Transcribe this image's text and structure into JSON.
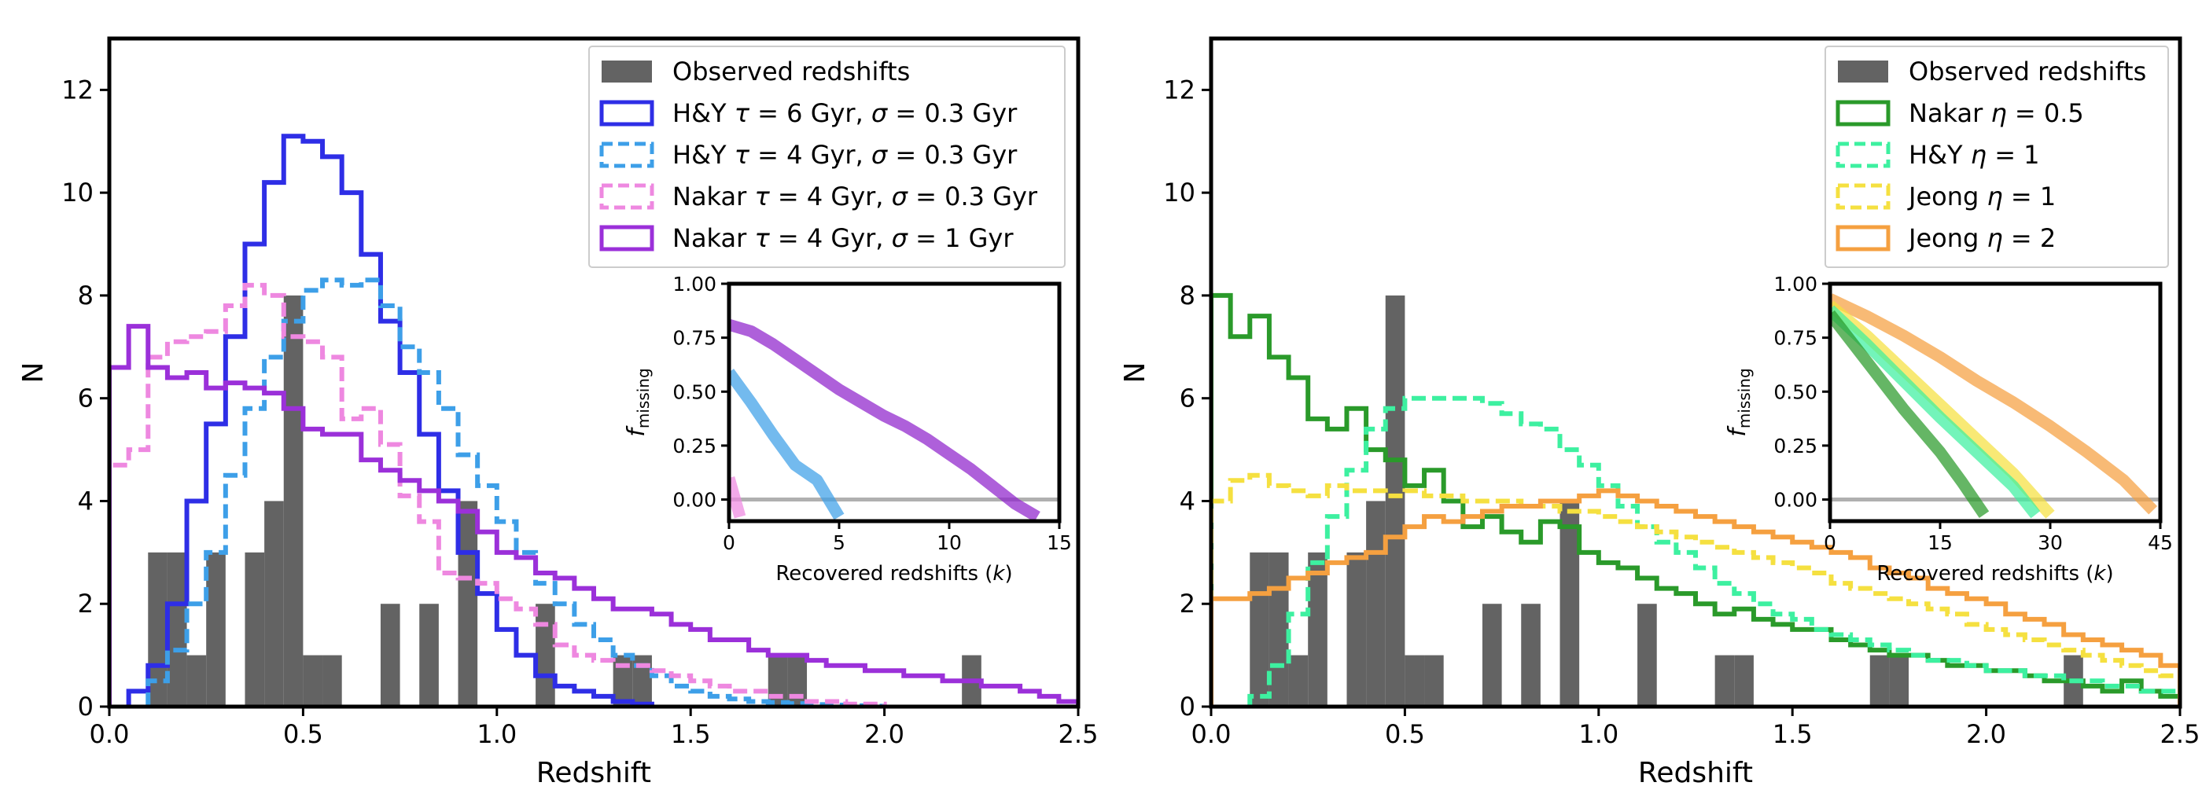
{
  "chart_data": [
    {
      "type": "histogram",
      "xlabel": "Redshift",
      "ylabel": "N",
      "xlim": [
        0,
        2.5
      ],
      "ylim": [
        0,
        13
      ],
      "xticks": [
        0.0,
        0.5,
        1.0,
        1.5,
        2.0,
        2.5
      ],
      "xtick_labels": [
        "0.0",
        "0.5",
        "1.0",
        "1.5",
        "2.0",
        "2.5"
      ],
      "yticks": [
        0,
        2,
        4,
        6,
        8,
        10,
        12
      ],
      "ytick_labels": [
        "0",
        "2",
        "4",
        "6",
        "8",
        "10",
        "12"
      ],
      "legend_position": "top-right",
      "observed": {
        "label": "Observed redshifts",
        "color": "#636363",
        "bin_width": 0.05,
        "bins": [
          {
            "x": 0.1,
            "n": 3
          },
          {
            "x": 0.15,
            "n": 3
          },
          {
            "x": 0.2,
            "n": 1
          },
          {
            "x": 0.25,
            "n": 3
          },
          {
            "x": 0.35,
            "n": 3
          },
          {
            "x": 0.4,
            "n": 4
          },
          {
            "x": 0.45,
            "n": 8
          },
          {
            "x": 0.5,
            "n": 1
          },
          {
            "x": 0.55,
            "n": 1
          },
          {
            "x": 0.7,
            "n": 2
          },
          {
            "x": 0.8,
            "n": 2
          },
          {
            "x": 0.9,
            "n": 4
          },
          {
            "x": 1.1,
            "n": 2
          },
          {
            "x": 1.3,
            "n": 1
          },
          {
            "x": 1.35,
            "n": 1
          },
          {
            "x": 1.7,
            "n": 1
          },
          {
            "x": 1.75,
            "n": 1
          },
          {
            "x": 2.2,
            "n": 1
          }
        ]
      },
      "series": [
        {
          "name": "H&Y τ = 6 Gyr, σ = 0.3 Gyr",
          "legend_parts": [
            "H&Y ",
            "τ",
            " = 6 Gyr, ",
            "σ",
            " = 0.3 Gyr"
          ],
          "color": "#2e2ee6",
          "dash": false,
          "x_start": 0.05,
          "bin_width": 0.05,
          "values": [
            0.3,
            0.8,
            2.0,
            4.0,
            5.5,
            7.2,
            9.0,
            10.2,
            11.1,
            11.0,
            10.7,
            10.0,
            8.8,
            7.5,
            6.5,
            5.3,
            4.2,
            3.0,
            2.2,
            1.5,
            1.0,
            0.6,
            0.4,
            0.3,
            0.2,
            0.1,
            0.05
          ]
        },
        {
          "name": "H&Y τ = 4 Gyr, σ = 0.3 Gyr",
          "legend_parts": [
            "H&Y ",
            "τ",
            " = 4 Gyr, ",
            "σ",
            " = 0.3 Gyr"
          ],
          "color": "#3d9fe8",
          "dash": true,
          "x_start": 0.1,
          "bin_width": 0.05,
          "values": [
            0.5,
            1.1,
            2.0,
            3.0,
            4.5,
            5.8,
            6.8,
            7.5,
            8.1,
            8.3,
            8.2,
            8.3,
            7.8,
            7.0,
            6.5,
            5.8,
            4.9,
            4.3,
            3.6,
            3.0,
            2.4,
            2.0,
            1.6,
            1.3,
            1.0,
            0.8,
            0.6,
            0.4,
            0.3,
            0.2,
            0.15,
            0.1,
            0.08,
            0.06,
            0.04,
            0.03,
            0.02,
            0.01
          ]
        },
        {
          "name": "Nakar τ = 4 Gyr, σ = 0.3 Gyr",
          "legend_parts": [
            "Nakar ",
            "τ",
            " = 4 Gyr, ",
            "σ",
            " = 0.3 Gyr"
          ],
          "color": "#ee88e0",
          "dash": true,
          "x_start": 0.0,
          "bin_width": 0.05,
          "values": [
            4.7,
            5.0,
            6.8,
            7.1,
            7.2,
            7.3,
            7.8,
            8.2,
            8.0,
            7.2,
            7.1,
            6.8,
            5.6,
            5.8,
            5.1,
            4.1,
            3.6,
            2.6,
            2.5,
            2.4,
            2.1,
            1.9,
            1.6,
            1.2,
            1.0,
            0.9,
            0.8,
            0.8,
            0.7,
            0.6,
            0.5,
            0.4,
            0.3,
            0.3,
            0.2,
            0.2,
            0.1,
            0.1,
            0.05,
            0.05
          ]
        },
        {
          "name": "Nakar τ = 4 Gyr, σ = 1 Gyr",
          "legend_parts": [
            "Nakar ",
            "τ",
            " = 4 Gyr, ",
            "σ",
            " = 1 Gyr"
          ],
          "color": "#9b30d9",
          "dash": false,
          "x_start": 0.0,
          "bin_width": 0.05,
          "values": [
            6.6,
            7.4,
            6.6,
            6.4,
            6.5,
            6.2,
            6.3,
            6.2,
            6.1,
            5.8,
            5.4,
            5.3,
            5.3,
            4.8,
            4.6,
            4.4,
            4.2,
            4.0,
            3.8,
            3.4,
            3.0,
            2.9,
            2.6,
            2.5,
            2.3,
            2.1,
            1.9,
            1.9,
            1.8,
            1.6,
            1.5,
            1.3,
            1.3,
            1.1,
            1.0,
            1.0,
            0.9,
            0.8,
            0.8,
            0.7,
            0.7,
            0.6,
            0.6,
            0.5,
            0.5,
            0.4,
            0.4,
            0.3,
            0.2,
            0.1
          ]
        }
      ],
      "inset": {
        "xlabel": "Recovered redshifts (k)",
        "xlabel_parts": [
          "Recovered redshifts (",
          "k",
          ")"
        ],
        "ylabel": "f_missing",
        "ylabel_parts": [
          "f",
          "missing"
        ],
        "xlim": [
          0,
          15
        ],
        "ylim": [
          -0.1,
          1.0
        ],
        "xticks": [
          0,
          5,
          10,
          15
        ],
        "xtick_labels": [
          "0",
          "5",
          "10",
          "15"
        ],
        "yticks": [
          0.0,
          0.25,
          0.5,
          0.75,
          1.0
        ],
        "ytick_labels": [
          "0.00",
          "0.25",
          "0.50",
          "0.75",
          "1.00"
        ],
        "zero_line_color": "#b0b0b0",
        "curves": [
          {
            "color": "#8f22cc",
            "x": [
              0,
              1,
              2,
              3,
              4,
              5,
              6,
              7,
              8,
              9,
              10,
              11,
              12,
              13,
              14
            ],
            "y": [
              0.81,
              0.78,
              0.72,
              0.65,
              0.58,
              0.51,
              0.45,
              0.39,
              0.34,
              0.28,
              0.21,
              0.14,
              0.06,
              -0.02,
              -0.08
            ]
          },
          {
            "color": "#3d9fe8",
            "x": [
              0,
              1,
              2,
              3,
              4,
              5
            ],
            "y": [
              0.59,
              0.45,
              0.3,
              0.16,
              0.09,
              -0.08
            ]
          },
          {
            "color": "#ee88e0",
            "x": [
              0,
              0.5
            ],
            "y": [
              0.1,
              -0.08
            ]
          }
        ]
      }
    },
    {
      "type": "histogram",
      "xlabel": "Redshift",
      "ylabel": "N",
      "xlim": [
        0,
        2.5
      ],
      "ylim": [
        0,
        13
      ],
      "xticks": [
        0.0,
        0.5,
        1.0,
        1.5,
        2.0,
        2.5
      ],
      "xtick_labels": [
        "0.0",
        "0.5",
        "1.0",
        "1.5",
        "2.0",
        "2.5"
      ],
      "yticks": [
        0,
        2,
        4,
        6,
        8,
        10,
        12
      ],
      "ytick_labels": [
        "0",
        "2",
        "4",
        "6",
        "8",
        "10",
        "12"
      ],
      "legend_position": "top-right",
      "observed": {
        "label": "Observed redshifts",
        "color": "#636363",
        "bin_width": 0.05,
        "bins": [
          {
            "x": 0.1,
            "n": 3
          },
          {
            "x": 0.15,
            "n": 3
          },
          {
            "x": 0.2,
            "n": 1
          },
          {
            "x": 0.25,
            "n": 3
          },
          {
            "x": 0.35,
            "n": 3
          },
          {
            "x": 0.4,
            "n": 4
          },
          {
            "x": 0.45,
            "n": 8
          },
          {
            "x": 0.5,
            "n": 1
          },
          {
            "x": 0.55,
            "n": 1
          },
          {
            "x": 0.7,
            "n": 2
          },
          {
            "x": 0.8,
            "n": 2
          },
          {
            "x": 0.9,
            "n": 4
          },
          {
            "x": 1.1,
            "n": 2
          },
          {
            "x": 1.3,
            "n": 1
          },
          {
            "x": 1.35,
            "n": 1
          },
          {
            "x": 1.7,
            "n": 1
          },
          {
            "x": 1.75,
            "n": 1
          },
          {
            "x": 2.2,
            "n": 1
          }
        ]
      },
      "series": [
        {
          "name": "Nakar η = 0.5",
          "legend_parts": [
            "Nakar ",
            "η",
            " = 0.5",
            "",
            ""
          ],
          "color": "#2a9a2a",
          "dash": false,
          "x_start": 0.0,
          "bin_width": 0.05,
          "values": [
            8.0,
            7.2,
            7.6,
            6.8,
            6.4,
            5.6,
            5.4,
            5.8,
            5.0,
            4.8,
            4.3,
            4.6,
            4.0,
            3.5,
            3.7,
            3.4,
            3.2,
            3.6,
            3.5,
            3.0,
            2.8,
            2.7,
            2.5,
            2.3,
            2.2,
            2.0,
            1.8,
            1.9,
            1.7,
            1.6,
            1.5,
            1.5,
            1.3,
            1.2,
            1.1,
            1.0,
            1.0,
            0.9,
            0.8,
            0.8,
            0.7,
            0.7,
            0.6,
            0.5,
            0.5,
            0.4,
            0.3,
            0.5,
            0.3,
            0.2
          ]
        },
        {
          "name": "H&Y η = 1",
          "legend_parts": [
            "H&Y ",
            "η",
            " = 1",
            "",
            ""
          ],
          "color": "#3df0a0",
          "dash": true,
          "x_start": 0.1,
          "bin_width": 0.05,
          "values": [
            0.2,
            0.8,
            1.8,
            2.8,
            3.7,
            4.6,
            5.4,
            5.8,
            6.0,
            6.0,
            6.0,
            6.0,
            5.9,
            5.7,
            5.5,
            5.4,
            5.0,
            4.7,
            4.3,
            3.9,
            3.5,
            3.2,
            3.0,
            2.7,
            2.4,
            2.2,
            2.0,
            1.8,
            1.7,
            1.5,
            1.4,
            1.3,
            1.2,
            1.1,
            1.0,
            0.9,
            0.9,
            0.8,
            0.7,
            0.7,
            0.6,
            0.6,
            0.5,
            0.5,
            0.4,
            0.4,
            0.3,
            0.3
          ]
        },
        {
          "name": "Jeong η = 1",
          "legend_parts": [
            "Jeong ",
            "η",
            " = 1",
            "",
            ""
          ],
          "color": "#f5e040",
          "dash": true,
          "x_start": 0.0,
          "bin_width": 0.05,
          "values": [
            4.0,
            4.4,
            4.5,
            4.3,
            4.2,
            4.1,
            4.3,
            4.2,
            4.2,
            4.1,
            4.2,
            4.1,
            4.1,
            4.0,
            4.0,
            4.0,
            3.9,
            3.9,
            3.8,
            3.8,
            3.7,
            3.6,
            3.5,
            3.4,
            3.3,
            3.2,
            3.1,
            3.0,
            2.9,
            2.8,
            2.7,
            2.6,
            2.4,
            2.3,
            2.2,
            2.1,
            2.0,
            1.9,
            1.8,
            1.6,
            1.5,
            1.4,
            1.3,
            1.2,
            1.1,
            1.0,
            0.9,
            0.8,
            0.7,
            0.6
          ]
        },
        {
          "name": "Jeong η = 2",
          "legend_parts": [
            "Jeong ",
            "η",
            " = 2",
            "",
            ""
          ],
          "color": "#f5a040",
          "dash": false,
          "x_start": 0.0,
          "bin_width": 0.05,
          "values": [
            2.1,
            2.1,
            2.2,
            2.3,
            2.5,
            2.6,
            2.8,
            2.9,
            3.0,
            3.3,
            3.5,
            3.7,
            3.6,
            3.7,
            3.8,
            3.9,
            3.9,
            4.0,
            4.0,
            4.1,
            4.2,
            4.1,
            4.0,
            3.9,
            3.8,
            3.7,
            3.6,
            3.5,
            3.4,
            3.3,
            3.2,
            3.1,
            3.0,
            2.9,
            2.7,
            2.6,
            2.5,
            2.3,
            2.2,
            2.1,
            2.0,
            1.8,
            1.7,
            1.6,
            1.4,
            1.3,
            1.2,
            1.1,
            1.0,
            0.8
          ]
        }
      ],
      "inset": {
        "xlabel": "Recovered redshifts (k)",
        "xlabel_parts": [
          "Recovered redshifts (",
          "k",
          ")"
        ],
        "ylabel": "f_missing",
        "ylabel_parts": [
          "f",
          "missing"
        ],
        "xlim": [
          0,
          45
        ],
        "ylim": [
          -0.1,
          1.0
        ],
        "xticks": [
          0,
          15,
          30,
          45
        ],
        "xtick_labels": [
          "0",
          "15",
          "30",
          "45"
        ],
        "yticks": [
          0.0,
          0.25,
          0.5,
          0.75,
          1.0
        ],
        "ytick_labels": [
          "0.00",
          "0.25",
          "0.50",
          "0.75",
          "1.00"
        ],
        "zero_line_color": "#b0b0b0",
        "curves": [
          {
            "color": "#f5a040",
            "x": [
              0,
              5,
              10,
              15,
              20,
              25,
              30,
              35,
              40,
              44
            ],
            "y": [
              0.93,
              0.85,
              0.76,
              0.66,
              0.55,
              0.45,
              0.34,
              0.22,
              0.09,
              -0.05
            ]
          },
          {
            "color": "#f5e040",
            "x": [
              0,
              5,
              10,
              15,
              20,
              25,
              30
            ],
            "y": [
              0.9,
              0.76,
              0.6,
              0.44,
              0.28,
              0.12,
              -0.07
            ]
          },
          {
            "color": "#3df0a0",
            "x": [
              0,
              5,
              10,
              15,
              20,
              25,
              28
            ],
            "y": [
              0.88,
              0.72,
              0.55,
              0.38,
              0.22,
              0.06,
              -0.07
            ]
          },
          {
            "color": "#2a9a2a",
            "x": [
              0,
              5,
              10,
              15,
              18,
              21
            ],
            "y": [
              0.86,
              0.64,
              0.42,
              0.22,
              0.08,
              -0.07
            ]
          }
        ]
      }
    }
  ]
}
